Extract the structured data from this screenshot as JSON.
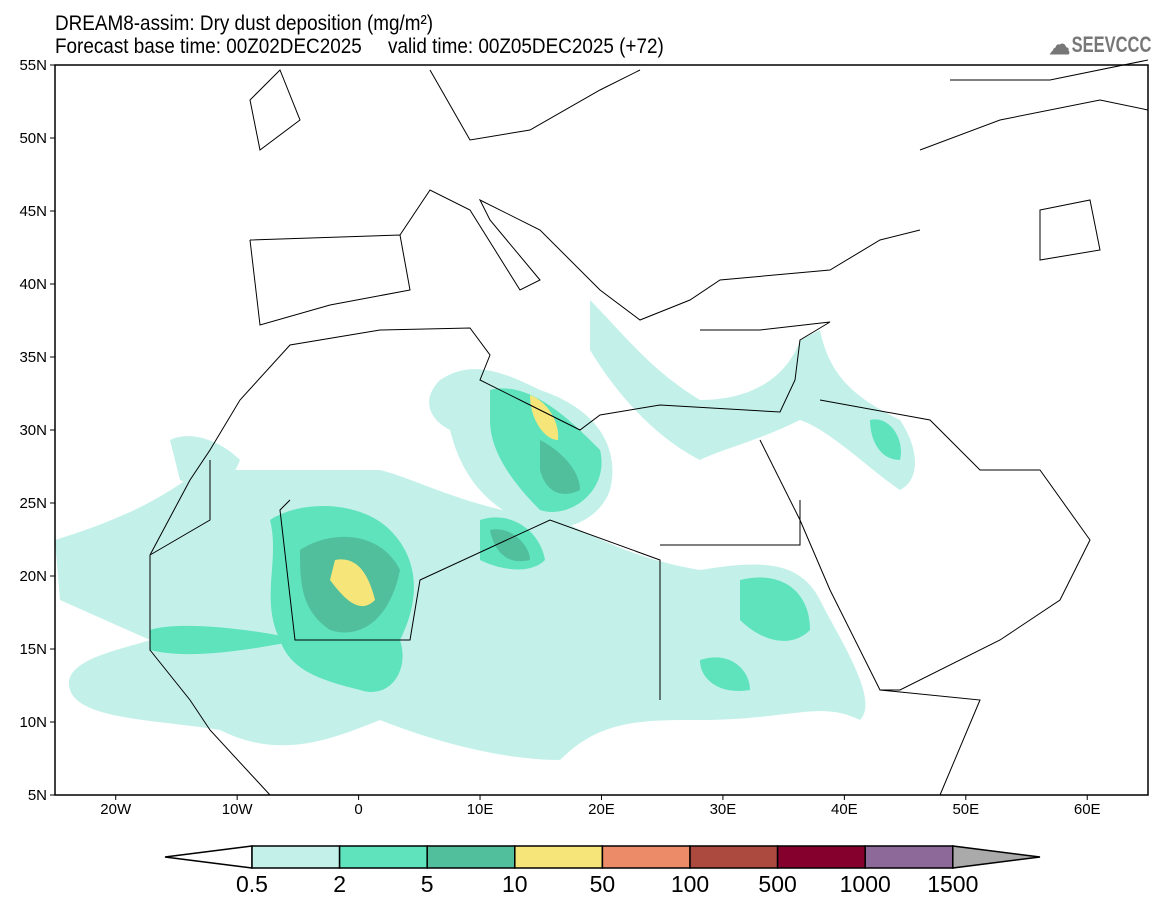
{
  "title": "DREAM8-assim: Dry dust deposition (mg/m²)",
  "subtitle": "Forecast base time: 00Z02DEC2025     valid time: 00Z05DEC2025 (+72)",
  "logo": "SEEVCCC",
  "lat_labels": [
    "55N",
    "50N",
    "45N",
    "40N",
    "35N",
    "30N",
    "25N",
    "20N",
    "15N",
    "10N",
    "5N"
  ],
  "lat_values": [
    55,
    50,
    45,
    40,
    35,
    30,
    25,
    20,
    15,
    10,
    5
  ],
  "lon_labels": [
    "20W",
    "10W",
    "0",
    "10E",
    "20E",
    "30E",
    "40E",
    "50E",
    "60E"
  ],
  "lon_values": [
    -20,
    -10,
    0,
    10,
    20,
    30,
    40,
    50,
    60
  ],
  "colorbar": {
    "labels": [
      "0.5",
      "2",
      "5",
      "10",
      "50",
      "100",
      "500",
      "1000",
      "1500"
    ],
    "colors": [
      "#c3f1e9",
      "#5ee3bd",
      "#52bf9c",
      "#f6e67a",
      "#ec8b68",
      "#ad4a40",
      "#85002c",
      "#8c6998"
    ],
    "under_color": "#ffffff",
    "over_color": "#aaaaaa"
  }
}
